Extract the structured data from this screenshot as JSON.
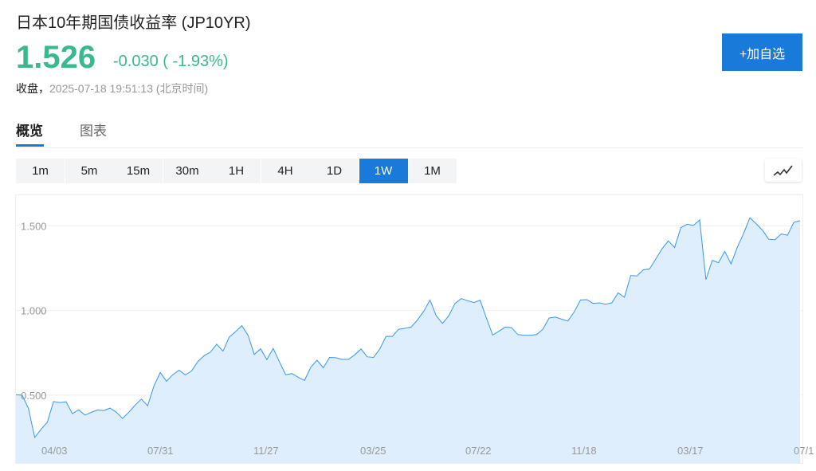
{
  "header": {
    "title": "日本10年期国债收益率 (JP10YR)",
    "price": "1.526",
    "change": "-0.030 ( -1.93%)",
    "close_label": "收盘，",
    "close_time": "2025-07-18 19:51:13",
    "timezone": "(北京时间)",
    "add_watchlist": "+加自选"
  },
  "tabs": [
    {
      "label": "概览",
      "active": true
    },
    {
      "label": "图表",
      "active": false
    }
  ],
  "ranges": [
    {
      "label": "1m"
    },
    {
      "label": "5m"
    },
    {
      "label": "15m"
    },
    {
      "label": "30m"
    },
    {
      "label": "1H"
    },
    {
      "label": "4H"
    },
    {
      "label": "1D"
    },
    {
      "label": "1W",
      "active": true
    },
    {
      "label": "1M"
    }
  ],
  "chart_type_icon": "line-chart-icon",
  "colors": {
    "accent": "#1a7ad9",
    "up_down": "#3ab890",
    "line": "#3b96f0",
    "fill": "#deeefd"
  },
  "chart_data": {
    "type": "area",
    "ylim": [
      0.1,
      1.68
    ],
    "yticks": [
      "0.500",
      "1.000",
      "1.500"
    ],
    "ytick_values": [
      0.5,
      1.0,
      1.5
    ],
    "xticks": [
      "04/03",
      "07/31",
      "11/27",
      "03/25",
      "07/22",
      "11/18",
      "03/17",
      "07/1"
    ],
    "grid": true,
    "values": [
      0.503,
      0.5,
      0.422,
      0.251,
      0.299,
      0.341,
      0.463,
      0.457,
      0.461,
      0.391,
      0.414,
      0.383,
      0.399,
      0.413,
      0.41,
      0.424,
      0.4,
      0.363,
      0.4,
      0.442,
      0.477,
      0.438,
      0.555,
      0.634,
      0.583,
      0.621,
      0.648,
      0.62,
      0.643,
      0.699,
      0.734,
      0.754,
      0.801,
      0.76,
      0.843,
      0.875,
      0.91,
      0.854,
      0.741,
      0.774,
      0.71,
      0.776,
      0.698,
      0.621,
      0.628,
      0.606,
      0.587,
      0.665,
      0.707,
      0.662,
      0.723,
      0.721,
      0.712,
      0.712,
      0.738,
      0.773,
      0.727,
      0.723,
      0.773,
      0.847,
      0.847,
      0.889,
      0.895,
      0.902,
      0.944,
      0.995,
      1.062,
      0.969,
      0.924,
      0.969,
      1.042,
      1.07,
      1.058,
      1.047,
      1.061,
      0.956,
      0.855,
      0.878,
      0.902,
      0.899,
      0.858,
      0.854,
      0.854,
      0.858,
      0.889,
      0.956,
      0.961,
      0.949,
      0.938,
      0.992,
      1.062,
      1.064,
      1.042,
      1.045,
      1.037,
      1.045,
      1.104,
      1.078,
      1.207,
      1.204,
      1.24,
      1.245,
      1.304,
      1.364,
      1.411,
      1.372,
      1.489,
      1.509,
      1.502,
      1.534,
      1.182,
      1.296,
      1.282,
      1.349,
      1.275,
      1.374,
      1.455,
      1.547,
      1.512,
      1.474,
      1.421,
      1.417,
      1.452,
      1.444,
      1.52,
      1.53
    ]
  }
}
